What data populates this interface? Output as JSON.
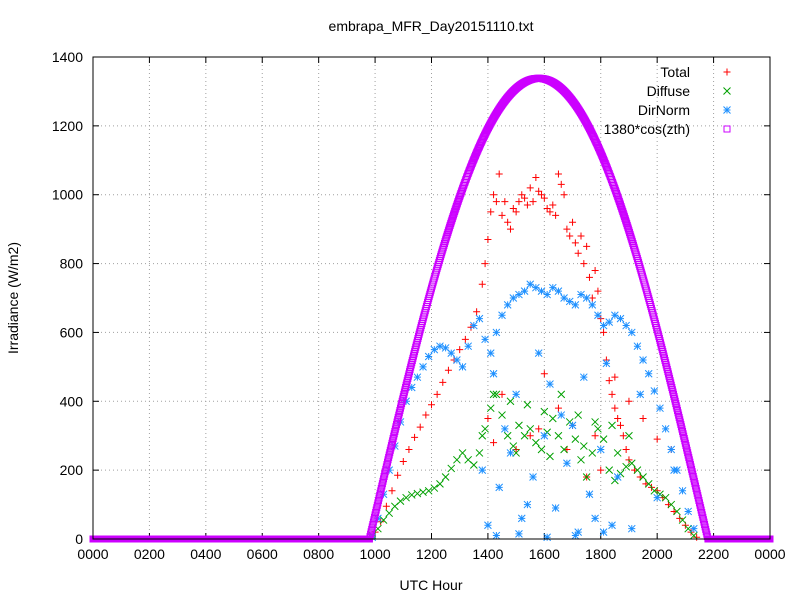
{
  "chart_data": {
    "type": "scatter",
    "title": "embrapa_MFR_Day20151110.txt",
    "xlabel": "UTC Hour",
    "ylabel": "Irradiance (W/m2)",
    "xlim": [
      0,
      24
    ],
    "ylim": [
      0,
      1400
    ],
    "grid": true,
    "legend_position": "top-right",
    "x_ticks": [
      {
        "value": 0,
        "label": "0000"
      },
      {
        "value": 2,
        "label": "0200"
      },
      {
        "value": 4,
        "label": "0400"
      },
      {
        "value": 6,
        "label": "0600"
      },
      {
        "value": 8,
        "label": "0800"
      },
      {
        "value": 10,
        "label": "1000"
      },
      {
        "value": 12,
        "label": "1200"
      },
      {
        "value": 14,
        "label": "1400"
      },
      {
        "value": 16,
        "label": "1600"
      },
      {
        "value": 18,
        "label": "1800"
      },
      {
        "value": 20,
        "label": "2000"
      },
      {
        "value": 22,
        "label": "2200"
      },
      {
        "value": 24,
        "label": "0000"
      }
    ],
    "y_ticks": [
      0,
      200,
      400,
      600,
      800,
      1000,
      1200,
      1400
    ],
    "series": [
      {
        "name": "Total",
        "color": "#ff0000",
        "marker": "plus",
        "points": [
          [
            9.8,
            5
          ],
          [
            10.0,
            20
          ],
          [
            10.2,
            50
          ],
          [
            10.4,
            95
          ],
          [
            10.6,
            140
          ],
          [
            10.8,
            185
          ],
          [
            11.0,
            225
          ],
          [
            11.2,
            260
          ],
          [
            11.4,
            295
          ],
          [
            11.6,
            325
          ],
          [
            11.8,
            360
          ],
          [
            12.0,
            390
          ],
          [
            12.2,
            420
          ],
          [
            12.4,
            455
          ],
          [
            12.6,
            490
          ],
          [
            12.8,
            520
          ],
          [
            13.0,
            550
          ],
          [
            13.2,
            580
          ],
          [
            13.4,
            615
          ],
          [
            13.6,
            660
          ],
          [
            13.8,
            740
          ],
          [
            13.9,
            800
          ],
          [
            14.0,
            870
          ],
          [
            14.1,
            950
          ],
          [
            14.2,
            1000
          ],
          [
            14.3,
            980
          ],
          [
            14.4,
            1060
          ],
          [
            14.5,
            940
          ],
          [
            14.6,
            980
          ],
          [
            14.7,
            920
          ],
          [
            14.8,
            900
          ],
          [
            14.9,
            960
          ],
          [
            15.0,
            950
          ],
          [
            15.1,
            980
          ],
          [
            15.2,
            1000
          ],
          [
            15.3,
            990
          ],
          [
            15.4,
            970
          ],
          [
            15.5,
            1020
          ],
          [
            15.6,
            980
          ],
          [
            15.7,
            1050
          ],
          [
            15.8,
            1010
          ],
          [
            15.9,
            1000
          ],
          [
            16.0,
            990
          ],
          [
            16.1,
            960
          ],
          [
            16.2,
            950
          ],
          [
            16.3,
            970
          ],
          [
            16.4,
            940
          ],
          [
            16.5,
            1060
          ],
          [
            16.6,
            1030
          ],
          [
            16.7,
            1000
          ],
          [
            16.8,
            900
          ],
          [
            16.9,
            880
          ],
          [
            17.0,
            920
          ],
          [
            17.1,
            860
          ],
          [
            17.2,
            830
          ],
          [
            17.3,
            880
          ],
          [
            17.4,
            800
          ],
          [
            17.5,
            850
          ],
          [
            17.6,
            760
          ],
          [
            17.7,
            700
          ],
          [
            17.8,
            780
          ],
          [
            17.9,
            720
          ],
          [
            18.0,
            640
          ],
          [
            18.1,
            600
          ],
          [
            18.2,
            520
          ],
          [
            18.3,
            460
          ],
          [
            18.4,
            420
          ],
          [
            18.5,
            380
          ],
          [
            18.6,
            350
          ],
          [
            18.7,
            330
          ],
          [
            18.8,
            300
          ],
          [
            18.9,
            260
          ],
          [
            19.0,
            230
          ],
          [
            19.2,
            200
          ],
          [
            19.4,
            180
          ],
          [
            19.6,
            160
          ],
          [
            19.8,
            150
          ],
          [
            20.0,
            140
          ],
          [
            20.2,
            120
          ],
          [
            20.4,
            100
          ],
          [
            20.6,
            80
          ],
          [
            20.8,
            60
          ],
          [
            21.0,
            40
          ],
          [
            21.2,
            20
          ],
          [
            21.4,
            5
          ],
          [
            14.0,
            350
          ],
          [
            14.5,
            420
          ],
          [
            15.0,
            260
          ],
          [
            15.5,
            300
          ],
          [
            16.0,
            480
          ],
          [
            16.5,
            380
          ],
          [
            17.0,
            330
          ],
          [
            17.5,
            180
          ],
          [
            18.0,
            200
          ],
          [
            18.5,
            470
          ],
          [
            19.0,
            400
          ],
          [
            19.5,
            350
          ],
          [
            20.0,
            290
          ],
          [
            20.5,
            260
          ],
          [
            14.2,
            280
          ],
          [
            15.8,
            320
          ],
          [
            16.8,
            260
          ],
          [
            17.8,
            300
          ]
        ]
      },
      {
        "name": "Diffuse",
        "color": "#00a000",
        "marker": "cross",
        "points": [
          [
            9.9,
            10
          ],
          [
            10.1,
            30
          ],
          [
            10.3,
            55
          ],
          [
            10.5,
            75
          ],
          [
            10.7,
            95
          ],
          [
            10.9,
            110
          ],
          [
            11.1,
            120
          ],
          [
            11.3,
            128
          ],
          [
            11.5,
            132
          ],
          [
            11.7,
            136
          ],
          [
            11.9,
            140
          ],
          [
            12.1,
            148
          ],
          [
            12.3,
            160
          ],
          [
            12.5,
            180
          ],
          [
            12.7,
            205
          ],
          [
            12.9,
            230
          ],
          [
            13.1,
            250
          ],
          [
            13.3,
            230
          ],
          [
            13.5,
            215
          ],
          [
            13.7,
            250
          ],
          [
            13.9,
            320
          ],
          [
            14.1,
            380
          ],
          [
            14.3,
            420
          ],
          [
            14.5,
            360
          ],
          [
            14.7,
            300
          ],
          [
            14.9,
            270
          ],
          [
            15.1,
            330
          ],
          [
            15.3,
            300
          ],
          [
            15.5,
            320
          ],
          [
            15.7,
            280
          ],
          [
            15.9,
            260
          ],
          [
            16.1,
            310
          ],
          [
            16.3,
            350
          ],
          [
            16.5,
            300
          ],
          [
            16.7,
            260
          ],
          [
            16.9,
            340
          ],
          [
            17.1,
            290
          ],
          [
            17.3,
            230
          ],
          [
            17.5,
            180
          ],
          [
            17.7,
            250
          ],
          [
            17.9,
            320
          ],
          [
            18.1,
            290
          ],
          [
            18.3,
            200
          ],
          [
            18.5,
            170
          ],
          [
            18.7,
            190
          ],
          [
            18.9,
            210
          ],
          [
            19.1,
            220
          ],
          [
            19.3,
            200
          ],
          [
            19.5,
            180
          ],
          [
            19.7,
            160
          ],
          [
            19.9,
            140
          ],
          [
            20.1,
            130
          ],
          [
            20.3,
            120
          ],
          [
            20.5,
            100
          ],
          [
            20.7,
            80
          ],
          [
            20.9,
            55
          ],
          [
            21.1,
            30
          ],
          [
            21.3,
            10
          ],
          [
            14.2,
            420
          ],
          [
            14.8,
            400
          ],
          [
            15.4,
            390
          ],
          [
            16.0,
            370
          ],
          [
            16.6,
            420
          ],
          [
            17.2,
            360
          ],
          [
            17.8,
            340
          ],
          [
            18.4,
            330
          ],
          [
            19.0,
            300
          ],
          [
            13.8,
            300
          ],
          [
            15.0,
            250
          ],
          [
            16.2,
            240
          ],
          [
            17.4,
            270
          ],
          [
            18.6,
            250
          ]
        ]
      },
      {
        "name": "DirNorm",
        "color": "#1e90ff",
        "marker": "star",
        "points": [
          [
            9.9,
            5
          ],
          [
            10.1,
            60
          ],
          [
            10.3,
            130
          ],
          [
            10.5,
            200
          ],
          [
            10.7,
            270
          ],
          [
            10.9,
            340
          ],
          [
            11.1,
            400
          ],
          [
            11.3,
            440
          ],
          [
            11.5,
            470
          ],
          [
            11.7,
            500
          ],
          [
            11.9,
            530
          ],
          [
            12.1,
            550
          ],
          [
            12.3,
            560
          ],
          [
            12.5,
            555
          ],
          [
            12.7,
            540
          ],
          [
            12.9,
            520
          ],
          [
            13.1,
            500
          ],
          [
            13.3,
            560
          ],
          [
            13.5,
            620
          ],
          [
            13.7,
            640
          ],
          [
            13.9,
            580
          ],
          [
            14.1,
            540
          ],
          [
            14.3,
            600
          ],
          [
            14.5,
            650
          ],
          [
            14.7,
            680
          ],
          [
            14.9,
            700
          ],
          [
            15.1,
            710
          ],
          [
            15.3,
            720
          ],
          [
            15.5,
            740
          ],
          [
            15.7,
            730
          ],
          [
            15.9,
            720
          ],
          [
            16.1,
            710
          ],
          [
            16.3,
            730
          ],
          [
            16.5,
            720
          ],
          [
            16.7,
            700
          ],
          [
            16.9,
            690
          ],
          [
            17.1,
            680
          ],
          [
            17.3,
            710
          ],
          [
            17.5,
            700
          ],
          [
            17.7,
            680
          ],
          [
            17.9,
            650
          ],
          [
            18.1,
            620
          ],
          [
            18.3,
            630
          ],
          [
            18.5,
            650
          ],
          [
            18.7,
            640
          ],
          [
            18.9,
            620
          ],
          [
            19.1,
            600
          ],
          [
            19.3,
            560
          ],
          [
            19.5,
            520
          ],
          [
            19.7,
            480
          ],
          [
            19.9,
            430
          ],
          [
            20.1,
            380
          ],
          [
            20.3,
            320
          ],
          [
            20.5,
            260
          ],
          [
            20.7,
            200
          ],
          [
            20.9,
            140
          ],
          [
            21.1,
            80
          ],
          [
            21.3,
            30
          ],
          [
            14.0,
            40
          ],
          [
            14.4,
            150
          ],
          [
            14.8,
            250
          ],
          [
            15.2,
            60
          ],
          [
            15.6,
            180
          ],
          [
            16.0,
            300
          ],
          [
            16.4,
            90
          ],
          [
            16.8,
            220
          ],
          [
            17.2,
            20
          ],
          [
            17.6,
            130
          ],
          [
            18.0,
            260
          ],
          [
            18.4,
            40
          ],
          [
            14.2,
            480
          ],
          [
            15.0,
            420
          ],
          [
            15.8,
            540
          ],
          [
            16.6,
            360
          ],
          [
            17.4,
            470
          ],
          [
            18.2,
            510
          ],
          [
            13.8,
            200
          ],
          [
            14.6,
            320
          ],
          [
            15.4,
            100
          ],
          [
            16.2,
            450
          ],
          [
            17.0,
            330
          ],
          [
            17.8,
            60
          ],
          [
            18.6,
            180
          ],
          [
            19.4,
            420
          ],
          [
            20.0,
            120
          ],
          [
            14.3,
            10
          ],
          [
            15.1,
            15
          ],
          [
            16.1,
            5
          ],
          [
            17.1,
            10
          ],
          [
            18.1,
            20
          ],
          [
            19.1,
            30
          ],
          [
            20.6,
            200
          ]
        ]
      },
      {
        "name": "1380*cos(zth)",
        "color": "#cc00ff",
        "marker": "square",
        "solar_noon_hour": 15.8,
        "half_day_hours": 6.0,
        "peak": 1338,
        "sunrise": 9.8,
        "sunset": 21.8
      }
    ]
  }
}
